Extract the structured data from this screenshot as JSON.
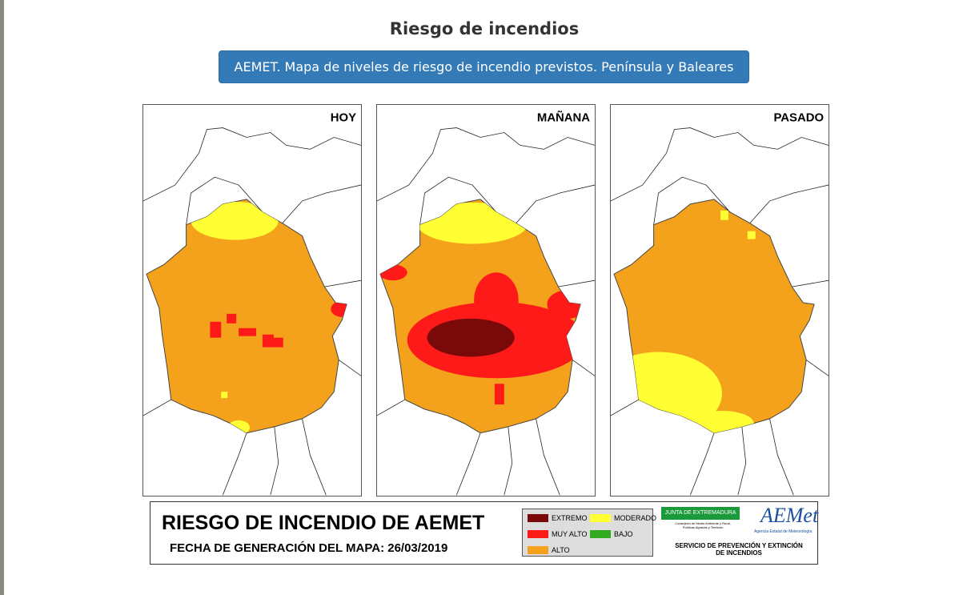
{
  "header": {
    "title": "Riesgo de incendios",
    "button": "AEMET. Mapa de niveles de riesgo de incendio previstos. Península y Baleares"
  },
  "maps": [
    {
      "label": "HOY"
    },
    {
      "label": "MAÑANA"
    },
    {
      "label": "PASADO"
    }
  ],
  "footer": {
    "title": "RIESGO DE INCENDIO DE AEMET",
    "date": "FECHA DE GENERACIÓN DEL MAPA: 26/03/2019",
    "legend": [
      {
        "label": "EXTREMO",
        "color": "#7a0a0a"
      },
      {
        "label": "MODERADO",
        "color": "#ffff33"
      },
      {
        "label": "MUY ALTO",
        "color": "#ff1a1a"
      },
      {
        "label": "BAJO",
        "color": "#33aa22"
      },
      {
        "label": "ALTO",
        "color": "#f4a21c"
      }
    ],
    "logos": {
      "junta": "JUNTA DE EXTREMADURA",
      "junta_sub": "Consejería de Medio Ambiente y Rural, Políticas Agrarias y Territorio",
      "aemet": "AEMet",
      "aemet_sub": "Agencia Estatal de Meteorología",
      "service": "SERVICIO DE PREVENCIÓN Y EXTINCIÓN DE INCENDIOS"
    }
  }
}
